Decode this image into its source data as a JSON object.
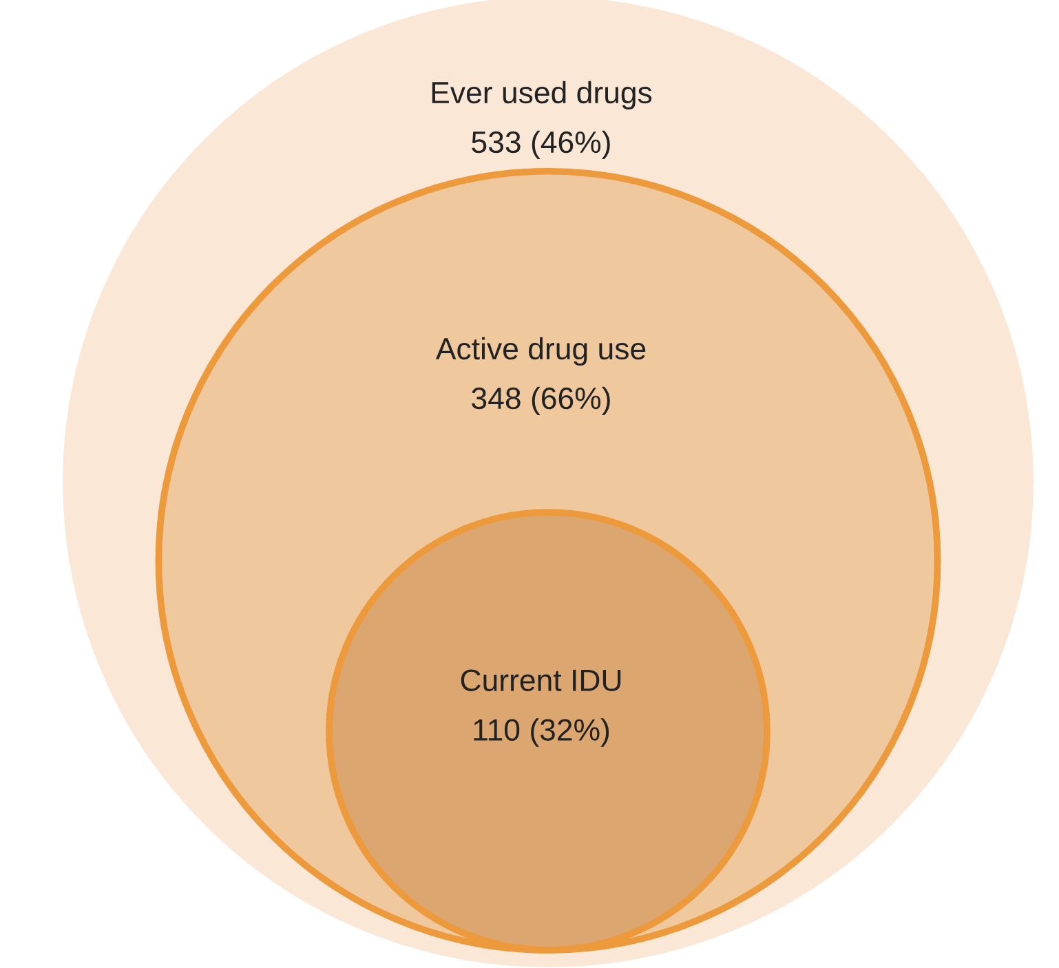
{
  "chart_data": {
    "type": "other",
    "categories": [
      "Ever used drugs",
      "Active drug use",
      "Current IDU"
    ],
    "values": [
      533,
      348,
      110
    ],
    "value_labels": [
      "533 (46%)",
      "348 (66%)",
      "110 (32%)"
    ],
    "colors": [
      "#fbe7d6",
      "#efc89e",
      "#dba670"
    ]
  }
}
